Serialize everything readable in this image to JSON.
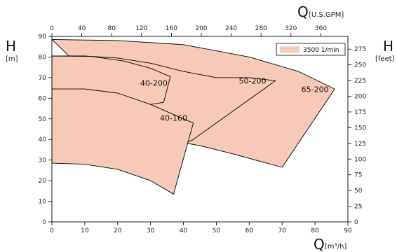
{
  "chart_data": {
    "type": "area",
    "primary_x_axis": {
      "symbol": "Q",
      "unit": "[m³/h]",
      "ticks": [
        0,
        10,
        20,
        30,
        40,
        50,
        60,
        70,
        80,
        90
      ],
      "range": [
        0,
        90
      ]
    },
    "secondary_x_axis": {
      "symbol": "Q",
      "unit": "[U.S.GPM]",
      "ticks": [
        0,
        40,
        80,
        120,
        160,
        200,
        240,
        280,
        320,
        360
      ]
    },
    "primary_y_axis": {
      "symbol": "H",
      "unit": "[m]",
      "ticks": [
        0,
        10,
        20,
        30,
        40,
        50,
        60,
        70,
        80,
        90
      ],
      "range": [
        0,
        90
      ]
    },
    "secondary_y_axis": {
      "symbol": "H",
      "unit": "[feet]",
      "ticks": [
        0,
        25,
        50,
        75,
        100,
        125,
        150,
        175,
        200,
        225,
        250,
        275
      ]
    },
    "legend": {
      "label": "3500 1/min",
      "color": "#f6c9b8",
      "placement": "top-right"
    },
    "fill_color": "#f6c9b8",
    "stroke_color": "#000000",
    "regions": [
      {
        "name": "65-200",
        "label_at": [
          80,
          63
        ],
        "boundary": [
          [
            0,
            88.5
          ],
          [
            20,
            88
          ],
          [
            40,
            86
          ],
          [
            60,
            80
          ],
          [
            75,
            73
          ],
          [
            86,
            64.5
          ],
          [
            70,
            26.5
          ],
          [
            55,
            33
          ],
          [
            45,
            37
          ],
          [
            38,
            39
          ],
          [
            33,
            37.5
          ]
        ]
      },
      {
        "name": "50-200",
        "label_at": [
          61,
          67
        ],
        "boundary": [
          [
            0,
            80.5
          ],
          [
            10,
            80.5
          ],
          [
            20,
            79.5
          ],
          [
            30,
            77
          ],
          [
            40,
            73
          ],
          [
            50,
            70
          ],
          [
            60,
            70
          ],
          [
            68,
            68.5
          ],
          [
            42.5,
            39.5
          ],
          [
            33,
            35
          ]
        ]
      },
      {
        "name": "40-200",
        "label_at": [
          31,
          66
        ],
        "boundary": [
          [
            0,
            80.5
          ],
          [
            12,
            80.3
          ],
          [
            22,
            78
          ],
          [
            30,
            74.5
          ],
          [
            36,
            70.5
          ],
          [
            34,
            58
          ],
          [
            30,
            57
          ],
          [
            0,
            58
          ]
        ]
      },
      {
        "name": "40-160",
        "label_at": [
          37,
          49
        ],
        "boundary": [
          [
            0,
            64.5
          ],
          [
            10,
            64.5
          ],
          [
            20,
            62.5
          ],
          [
            30,
            57
          ],
          [
            40,
            50
          ],
          [
            43,
            48
          ],
          [
            37,
            13.5
          ],
          [
            30,
            20
          ],
          [
            20,
            25.5
          ],
          [
            10,
            28
          ],
          [
            0,
            28.5
          ]
        ]
      }
    ]
  }
}
